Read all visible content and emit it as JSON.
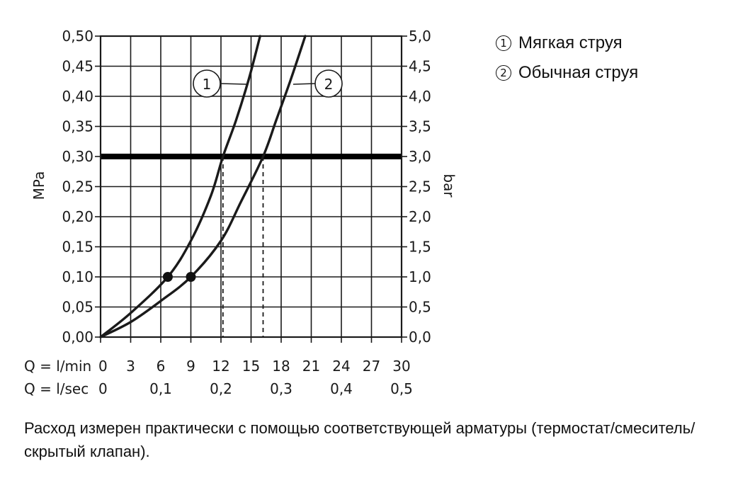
{
  "legend": [
    {
      "marker": "1",
      "label": "Мягкая струя"
    },
    {
      "marker": "2",
      "label": "Обычная струя"
    }
  ],
  "note": "Расход измерен практически с помощью соответствующей арматуры (термостат/смеситель/скрытый клапан).",
  "chart_data": {
    "type": "line",
    "title": "",
    "ylabel": "MPa",
    "y2label": "bar",
    "ylim": [
      0,
      0.5
    ],
    "y2lim": [
      0,
      5.0
    ],
    "xlim": [
      0,
      30
    ],
    "grid": true,
    "yticks": [
      "0,00",
      "0,05",
      "0,10",
      "0,15",
      "0,20",
      "0,25",
      "0,30",
      "0,35",
      "0,40",
      "0,45",
      "0,50"
    ],
    "y2ticks": [
      "0,0",
      "0,5",
      "1,0",
      "1,5",
      "2,0",
      "2,5",
      "3,0",
      "3,5",
      "4,0",
      "4,5",
      "5,0"
    ],
    "x_rows": [
      {
        "label": "Q = l/min",
        "ticks": [
          {
            "x": 0,
            "text": "0"
          },
          {
            "x": 3,
            "text": "3"
          },
          {
            "x": 6,
            "text": "6"
          },
          {
            "x": 9,
            "text": "9"
          },
          {
            "x": 12,
            "text": "12"
          },
          {
            "x": 15,
            "text": "15"
          },
          {
            "x": 18,
            "text": "18"
          },
          {
            "x": 21,
            "text": "21"
          },
          {
            "x": 24,
            "text": "24"
          },
          {
            "x": 27,
            "text": "27"
          },
          {
            "x": 30,
            "text": "30"
          }
        ]
      },
      {
        "label": "Q = l/sec",
        "ticks": [
          {
            "x": 0,
            "text": "0"
          },
          {
            "x": 6,
            "text": "0,1"
          },
          {
            "x": 12,
            "text": "0,2"
          },
          {
            "x": 18,
            "text": "0,3"
          },
          {
            "x": 24,
            "text": "0,4"
          },
          {
            "x": 30,
            "text": "0,5"
          }
        ]
      }
    ],
    "reference_line": {
      "y": 0.3
    },
    "series": [
      {
        "marker": "1",
        "x": [
          0,
          3,
          6.7,
          9,
          11,
          12.2,
          13.5,
          14.8,
          15.9
        ],
        "y": [
          0,
          0.04,
          0.1,
          0.16,
          0.235,
          0.3,
          0.36,
          0.43,
          0.5
        ],
        "dot": {
          "x": 6.7,
          "y": 0.1
        },
        "drop_x": 12.2,
        "callout_at": {
          "x": 14.6,
          "y": 0.42
        }
      },
      {
        "marker": "2",
        "x": [
          0,
          3,
          6,
          9,
          12,
          14,
          16.2,
          17.5,
          19,
          20.4
        ],
        "y": [
          0,
          0.025,
          0.06,
          0.1,
          0.16,
          0.225,
          0.3,
          0.36,
          0.43,
          0.5
        ],
        "dot": {
          "x": 9,
          "y": 0.1
        },
        "drop_x": 16.2,
        "callout_at": {
          "x": 19.2,
          "y": 0.42
        }
      }
    ]
  }
}
